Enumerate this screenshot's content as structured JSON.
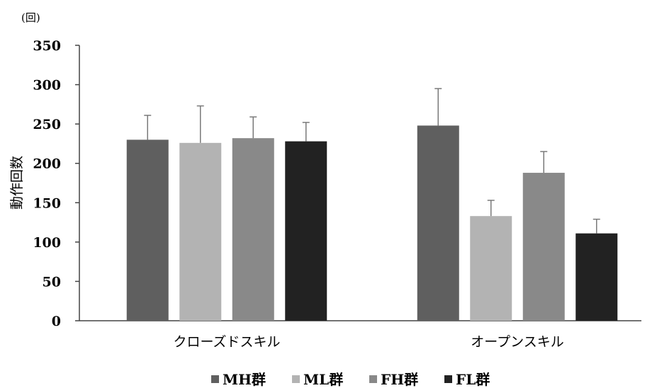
{
  "chart_data": {
    "type": "bar",
    "unit_label": "(回)",
    "ylabel": "動作回数",
    "xlabel": "",
    "ylim": [
      0,
      350
    ],
    "yticks": [
      0,
      50,
      100,
      150,
      200,
      250,
      300,
      350
    ],
    "categories": [
      "クローズドスキル",
      "オープンスキル"
    ],
    "series": [
      {
        "name": "MH群",
        "color": "#5f5f5f",
        "values": [
          230,
          248
        ],
        "errors": [
          31,
          47
        ]
      },
      {
        "name": "ML群",
        "color": "#b3b3b3",
        "values": [
          226,
          133
        ],
        "errors": [
          47,
          20
        ]
      },
      {
        "name": "FH群",
        "color": "#898989",
        "values": [
          232,
          188
        ],
        "errors": [
          27,
          27
        ]
      },
      {
        "name": "FL群",
        "color": "#222222",
        "values": [
          228,
          111
        ],
        "errors": [
          24,
          18
        ]
      }
    ],
    "legend_position": "bottom",
    "grid": false
  }
}
